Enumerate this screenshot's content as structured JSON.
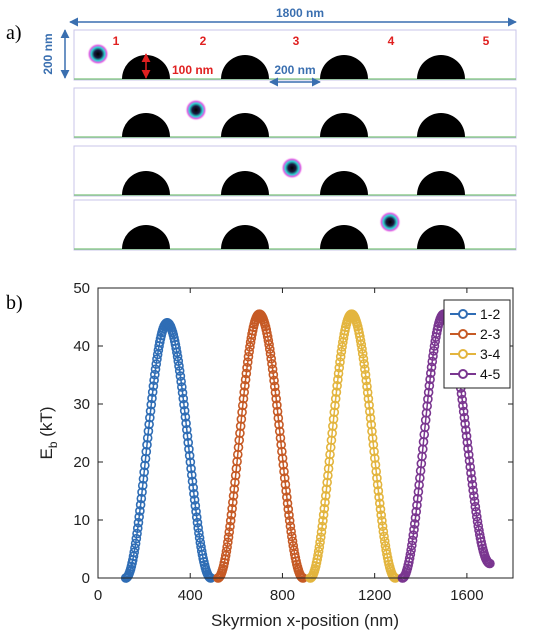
{
  "panel_labels": {
    "a": "a)",
    "b": "b)"
  },
  "panel_a": {
    "width_label": "1800 nm",
    "height_label": "200 nm",
    "bump_height_label": "100 nm",
    "spacing_label": "200 nm",
    "site_labels": [
      "1",
      "2",
      "3",
      "4",
      "5"
    ]
  },
  "chart_data": {
    "type": "line",
    "xlabel": "Skyrmion x-position (nm)",
    "ylabel": "E",
    "ylabel_sub": "b",
    "ylabel_unit": " (kT)",
    "xlim": [
      0,
      1800
    ],
    "ylim": [
      0,
      50
    ],
    "xticks": [
      0,
      400,
      800,
      1200,
      1600
    ],
    "yticks": [
      0,
      10,
      20,
      30,
      40,
      50
    ],
    "legend_position": "top-right",
    "series": [
      {
        "name": "1-2",
        "color": "#2f6db5",
        "x_start": 120,
        "x_peak": 300,
        "x_end": 490,
        "peak": 44,
        "end_value": 0
      },
      {
        "name": "2-3",
        "color": "#c65a25",
        "x_start": 520,
        "x_peak": 700,
        "x_end": 890,
        "peak": 45.5,
        "end_value": 0
      },
      {
        "name": "3-4",
        "color": "#e3b53e",
        "x_start": 920,
        "x_peak": 1100,
        "x_end": 1290,
        "peak": 45.5,
        "end_value": 0
      },
      {
        "name": "4-5",
        "color": "#7a3690",
        "x_start": 1320,
        "x_peak": 1500,
        "x_end": 1700,
        "peak": 45.5,
        "end_value": 2.5
      }
    ]
  }
}
